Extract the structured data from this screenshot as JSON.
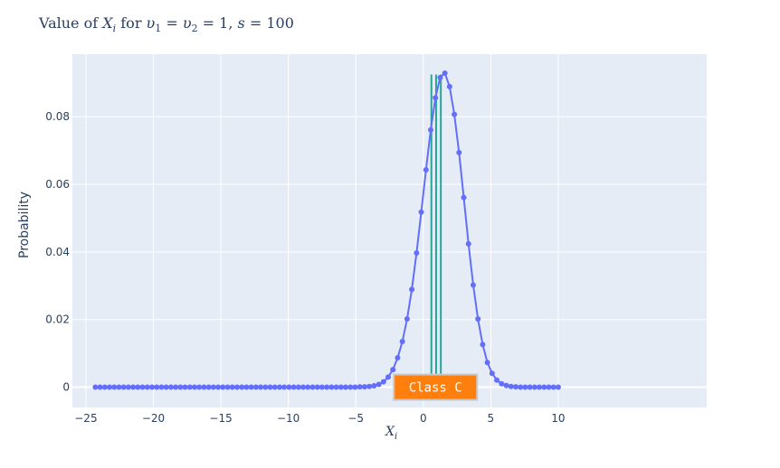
{
  "chart_data": {
    "type": "line",
    "title_parts": [
      {
        "text": "Value of ",
        "italic": false
      },
      {
        "text": "X",
        "italic": true
      },
      {
        "text": "i",
        "italic": true,
        "sub": true
      },
      {
        "text": " for ",
        "italic": false
      },
      {
        "text": "υ",
        "italic": true
      },
      {
        "text": "1",
        "italic": false,
        "sub": true
      },
      {
        "text": " = ",
        "italic": false
      },
      {
        "text": "υ",
        "italic": true
      },
      {
        "text": "2",
        "italic": false,
        "sub": true
      },
      {
        "text": " = 1, ",
        "italic": false
      },
      {
        "text": "s",
        "italic": true
      },
      {
        "text": " = 100",
        "italic": false
      }
    ],
    "xlabel": "X",
    "xlabel_sub": "i",
    "ylabel": "Probability",
    "xlim": [
      -26,
      21
    ],
    "ylim": [
      -0.006,
      0.0985
    ],
    "x_ticks": [
      -25,
      -20,
      -15,
      -10,
      -5,
      0,
      5,
      10
    ],
    "x_tick_labels": [
      "−25",
      "−20",
      "−15",
      "−10",
      "−5",
      "0",
      "5",
      "10"
    ],
    "y_ticks": [
      0,
      0.02,
      0.04,
      0.06,
      0.08
    ],
    "y_tick_labels": [
      "0",
      "0.02",
      "0.04",
      "0.06",
      "0.08"
    ],
    "grid": true,
    "series": [
      {
        "color": "#636efa",
        "x": [
          -24.3,
          -23.95,
          -23.6,
          -23.25,
          -22.9,
          -22.55,
          -22.2,
          -21.85,
          -21.5,
          -21.15,
          -20.8,
          -20.45,
          -20.1,
          -19.75,
          -19.4,
          -19.05,
          -18.7,
          -18.35,
          -18.0,
          -17.65,
          -17.3,
          -16.95,
          -16.6,
          -16.25,
          -15.9,
          -15.55,
          -15.2,
          -14.85,
          -14.5,
          -14.15,
          -13.8,
          -13.45,
          -13.1,
          -12.75,
          -12.4,
          -12.05,
          -11.7,
          -11.35,
          -11.0,
          -10.65,
          -10.3,
          -9.95,
          -9.6,
          -9.25,
          -8.9,
          -8.55,
          -8.2,
          -7.85,
          -7.5,
          -7.15,
          -6.8,
          -6.45,
          -6.1,
          -5.75,
          -5.4,
          -5.05,
          -4.7,
          -4.35,
          -4.0,
          -3.65,
          -3.3,
          -2.95,
          -2.6,
          -2.25,
          -1.9,
          -1.55,
          -1.2,
          -0.85,
          -0.5,
          -0.15,
          0.2,
          0.55,
          0.9,
          1.25,
          1.6,
          1.95,
          2.3,
          2.65,
          3.0,
          3.35,
          3.7,
          4.05,
          4.4,
          4.75,
          5.1,
          5.45,
          5.8,
          6.15,
          6.5,
          6.85,
          7.2,
          7.55,
          7.9,
          8.25,
          8.6,
          8.95,
          9.3,
          9.65,
          10.0
        ],
        "y": [
          0,
          0,
          0,
          0,
          0,
          0,
          0,
          0,
          0,
          0,
          0,
          0,
          0,
          0,
          0,
          0,
          0,
          0,
          0,
          0,
          0,
          0,
          0,
          0,
          0,
          0,
          0,
          0,
          0,
          0,
          0,
          0,
          0,
          0,
          0,
          0,
          0,
          0,
          0,
          0,
          0,
          0,
          0,
          0,
          0,
          0,
          0,
          0,
          0,
          0,
          0,
          0,
          0,
          0,
          0,
          0,
          0.0001,
          0.0001,
          0.0002,
          0.0004,
          0.0008,
          0.0016,
          0.003,
          0.0052,
          0.0087,
          0.0135,
          0.0202,
          0.0289,
          0.0397,
          0.0518,
          0.0643,
          0.0761,
          0.0856,
          0.0916,
          0.0929,
          0.0889,
          0.0807,
          0.0694,
          0.0561,
          0.0424,
          0.0302,
          0.0202,
          0.0126,
          0.0073,
          0.0041,
          0.0021,
          0.001,
          0.0005,
          0.0002,
          0.0001,
          0,
          0,
          0,
          0,
          0,
          0,
          0,
          0,
          0
        ]
      }
    ],
    "vlines": {
      "color": "#26a69a",
      "x": [
        0.6,
        0.95,
        1.3
      ],
      "y_range": [
        0,
        0.0925
      ]
    },
    "annotation": {
      "text": "Class C",
      "x_center": 0.9,
      "y": 0,
      "bg": "#ff7f0e",
      "border": "#c8c8c8"
    }
  }
}
